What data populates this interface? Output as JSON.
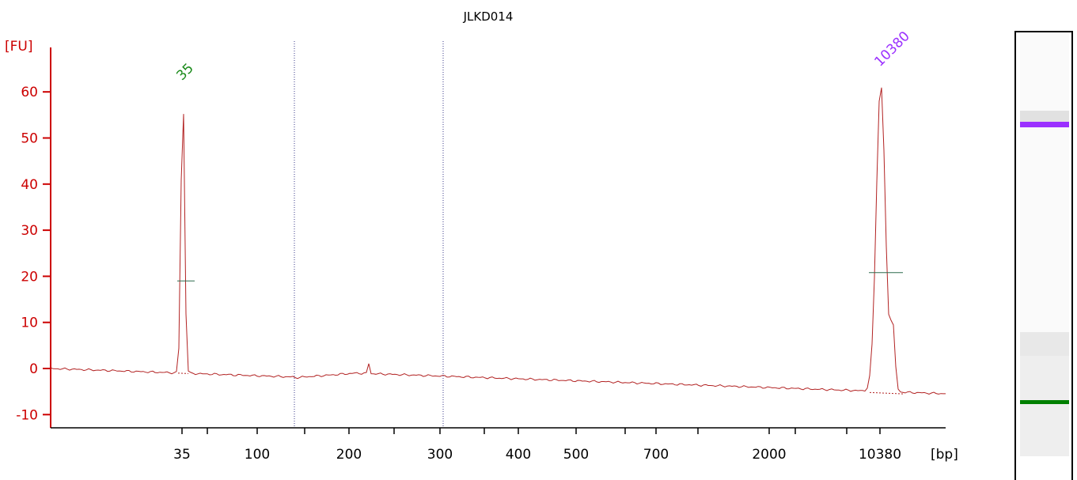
{
  "chart_data": {
    "type": "line",
    "title": "JLKD014",
    "ylabel": "[FU]",
    "xlabel": "[bp]",
    "ylim": [
      -13,
      72
    ],
    "y_ticks": [
      -10,
      0,
      10,
      20,
      30,
      40,
      50,
      60
    ],
    "x_ticks": [
      "35",
      "100",
      "200",
      "300",
      "400",
      "500",
      "700",
      "2000",
      "10380"
    ],
    "grid": false,
    "colors": {
      "axis": "#cc0000",
      "trace": "#b22222",
      "marker_35": "#1a8a1a",
      "marker_10380": "#9b30ff",
      "gridline": "#3a3a8a"
    },
    "series": [
      {
        "x": [
          "35",
          "35",
          "35",
          "35",
          "100",
          "200",
          "210",
          "212",
          "300",
          "400",
          "500",
          "700",
          "2000",
          "10380",
          "10380",
          "10380",
          "10380",
          "10380"
        ],
        "y": [
          0,
          -1,
          61,
          -1,
          -2,
          -1,
          1,
          -1,
          -2,
          -3,
          -3.5,
          -4,
          -5,
          -5,
          64,
          21,
          -5,
          -5.5
        ]
      }
    ],
    "annotations": [
      {
        "text": "35",
        "x": "35",
        "y": 61,
        "color": "#1a8a1a"
      },
      {
        "text": "10380",
        "x": "10380",
        "y": 64,
        "color": "#9b30ff"
      }
    ],
    "gel_bands": [
      {
        "label": "10380",
        "color": "#9b30ff"
      },
      {
        "label": "35",
        "color": "#008000"
      }
    ]
  }
}
